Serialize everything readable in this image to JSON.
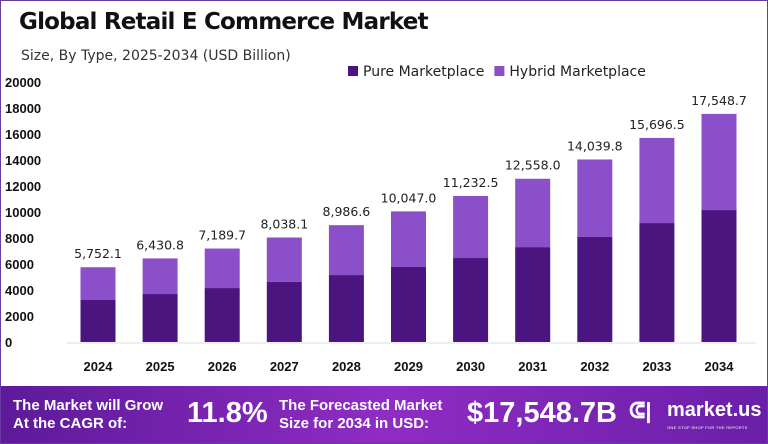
{
  "chart_data": {
    "type": "bar",
    "stacked": true,
    "title": "Global Retail E Commerce Market",
    "subtitle": "Size, By Type, 2025-2034 (USD Billion)",
    "categories": [
      "2024",
      "2025",
      "2026",
      "2027",
      "2028",
      "2029",
      "2030",
      "2031",
      "2032",
      "2033",
      "2034"
    ],
    "totals": [
      5752.1,
      6430.8,
      7189.7,
      8038.1,
      8986.6,
      10047.0,
      11232.5,
      12558.0,
      14039.8,
      15696.5,
      17548.7
    ],
    "total_labels": [
      "5,752.1",
      "6,430.8",
      "7,189.7",
      "8,038.1",
      "8,986.6",
      "10,047.0",
      "11,232.5",
      "12,558.0",
      "14,039.8",
      "15,696.5",
      "17,548.7"
    ],
    "series": [
      {
        "name": "Pure Marketplace",
        "color": "#4b1580",
        "values": [
          3230,
          3690,
          4150,
          4620,
          5150,
          5770,
          6460,
          7300,
          8080,
          9150,
          10150
        ]
      },
      {
        "name": "Hybrid Marketplace",
        "color": "#8a4fc9",
        "values": [
          2522.1,
          2740.8,
          3039.7,
          3418.1,
          3836.6,
          4277.0,
          4772.5,
          5258.0,
          5959.8,
          6546.5,
          7398.7
        ]
      }
    ],
    "yticks": [
      0,
      2000,
      4000,
      6000,
      8000,
      10000,
      12000,
      14000,
      16000,
      18000,
      20000
    ],
    "ylim": [
      0,
      20000
    ],
    "grid": false,
    "legend": "top-right"
  },
  "footer": {
    "cagr_text_line1": "The Market will Grow",
    "cagr_text_line2": "At the CAGR of:",
    "cagr_value": "11.8%",
    "forecast_text_line1": "The Forecasted Market",
    "forecast_text_line2": "Size for 2034 in USD:",
    "forecast_value": "$17,548.7B",
    "logo": "market.us",
    "logo_tagline": "ONE STOP SHOP FOR THE REPORTS"
  }
}
